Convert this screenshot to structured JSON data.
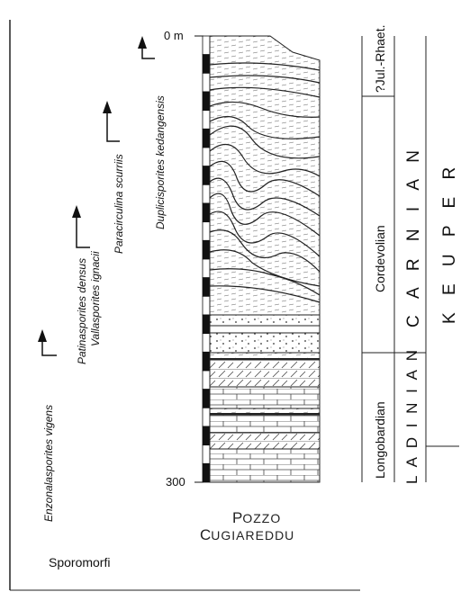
{
  "depth_labels": {
    "top": "0 m",
    "bottom": "300"
  },
  "well_name": {
    "line1_initial": "P",
    "line1_rest": "OZZO",
    "line2_initial": "C",
    "line2_rest": "UGIAREDDU"
  },
  "caption": "Sporomorfi",
  "taxa": [
    "Enzonalasporites vigens",
    "Patinasporites densus",
    "Vallasporites ignacii",
    "Paracirculina scurriis",
    "Duplicisporites kedangensis"
  ],
  "chronostratigraphy": {
    "substages": [
      "?Jul.-Rhaet.",
      "Cordevolian",
      "Longobardian"
    ],
    "stages": [
      "C A R N I A N",
      "L A D I N I A N"
    ],
    "group": "K E U P E R"
  }
}
